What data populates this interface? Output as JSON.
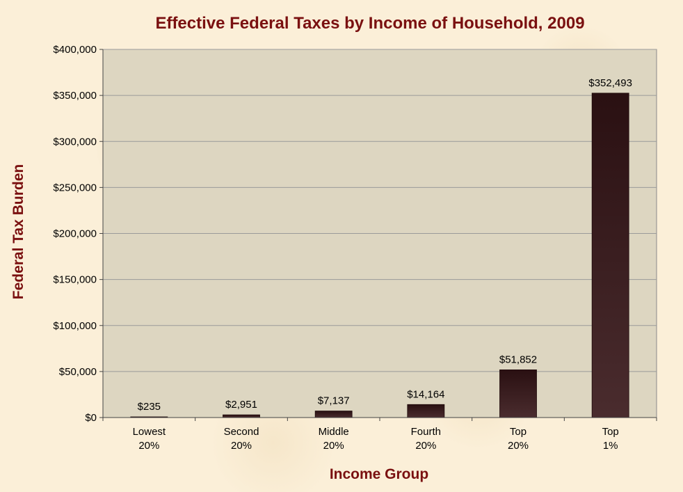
{
  "chart_data": {
    "type": "bar",
    "title": "Effective Federal Taxes by Income of Household, 2009",
    "xlabel": "Income Group",
    "ylabel": "Federal Tax Burden",
    "categories": [
      [
        "Lowest",
        "20%"
      ],
      [
        "Second",
        "20%"
      ],
      [
        "Middle",
        "20%"
      ],
      [
        "Fourth",
        "20%"
      ],
      [
        "Top",
        "20%"
      ],
      [
        "Top",
        "1%"
      ]
    ],
    "values": [
      235,
      2951,
      7137,
      14164,
      51852,
      352493
    ],
    "data_labels": [
      "$235",
      "$2,951",
      "$7,137",
      "$14,164",
      "$51,852",
      "$352,493"
    ],
    "ylim": [
      0,
      400000
    ],
    "yticks": [
      0,
      50000,
      100000,
      150000,
      200000,
      250000,
      300000,
      350000,
      400000
    ],
    "ytick_labels": [
      "$0",
      "$50,000",
      "$100,000",
      "$150,000",
      "$200,000",
      "$250,000",
      "$300,000",
      "$350,000",
      "$400,000"
    ],
    "grid": true,
    "legend": "none",
    "colors": {
      "plot_background": "#ddd6c1",
      "bar": "#3c1e20",
      "bar_top": "#2a1012",
      "gridline": "#9a9a9a",
      "title": "#7a1010"
    }
  }
}
